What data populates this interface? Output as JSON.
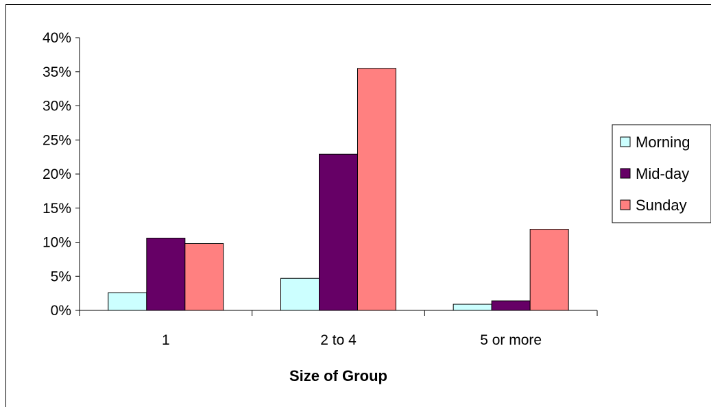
{
  "chart_data": {
    "type": "bar",
    "title": "",
    "xlabel": "Size of Group",
    "ylabel": "",
    "categories": [
      "1",
      "2 to 4",
      "5 or more"
    ],
    "ylim": [
      0,
      0.4
    ],
    "ytick_step": 0.05,
    "ytick_labels": [
      "0%",
      "5%",
      "10%",
      "15%",
      "20%",
      "25%",
      "30%",
      "35%",
      "40%"
    ],
    "grid": false,
    "legend_position": "right",
    "series": [
      {
        "name": "Morning",
        "color": "#ccffff",
        "values": [
          0.026,
          0.047,
          0.009
        ]
      },
      {
        "name": "Mid-day",
        "color": "#660066",
        "values": [
          0.106,
          0.229,
          0.014
        ]
      },
      {
        "name": "Sunday",
        "color": "#ff8080",
        "values": [
          0.098,
          0.355,
          0.119
        ]
      }
    ]
  }
}
